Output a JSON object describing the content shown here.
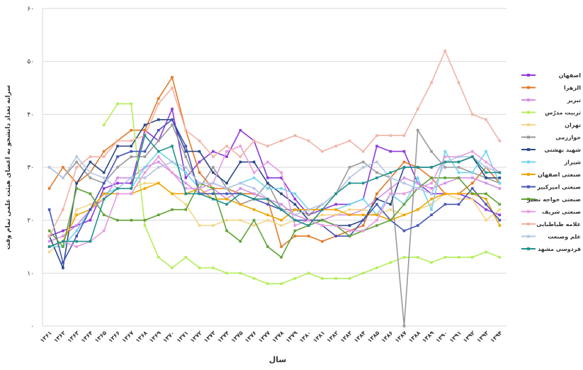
{
  "chart_data": {
    "type": "line",
    "ylabel": "سرانه تعداد دانشجو به اعضای هیئت علمی تمام وقت",
    "xlabel": "سال",
    "categories": [
      "۱۳۶۱",
      "۱۳۶۲",
      "۱۳۶۳",
      "۱۳۶۴",
      "۱۳۶۵",
      "۱۳۶۶",
      "۱۳۶۷",
      "۱۳۶۸",
      "۱۳۶۹",
      "۱۳۷۰",
      "۱۳۷۱",
      "۱۳۷۲",
      "۱۳۷۳",
      "۱۳۷۴",
      "۱۳۷۵",
      "۱۳۷۶",
      "۱۳۷۷",
      "۱۳۷۸",
      "۱۳۷۹",
      "۱۳۸۰",
      "۱۳۸۱",
      "۱۳۸۲",
      "۱۳۸۳",
      "۱۳۸۴",
      "۱۳۸۵",
      "۱۳۸۶",
      "۱۳۸۷",
      "۱۳۸۸",
      "۱۳۸۹",
      "۱۳۹۰",
      "۱۳۹۱",
      "۱۳۹۲",
      "۱۳۹۳",
      "۱۳۹۴"
    ],
    "ylim": [
      0,
      60
    ],
    "yticks": [
      {
        "value": 0,
        "label": "۰"
      },
      {
        "value": 10,
        "label": "۱۰"
      },
      {
        "value": 20,
        "label": "۲۰"
      },
      {
        "value": 30,
        "label": "۳۰"
      },
      {
        "value": 40,
        "label": "۴۰"
      },
      {
        "value": 50,
        "label": "۵۰"
      },
      {
        "value": 60,
        "label": "۶۰"
      }
    ],
    "grid": true,
    "series": [
      {
        "name": "اصفهان",
        "color": "#8e3ad6",
        "values": [
          17,
          18,
          19,
          20,
          26,
          27,
          27,
          37,
          35,
          41,
          28,
          31,
          33,
          32,
          37,
          35,
          28,
          28,
          24,
          21,
          22,
          23,
          23,
          24,
          34,
          33,
          33,
          27,
          25,
          25,
          25,
          24,
          22,
          21
        ]
      },
      {
        "name": "الزهرا",
        "color": "#e07a2c",
        "values": [
          26,
          30,
          27,
          29,
          33,
          35,
          37,
          37,
          43,
          47,
          37,
          29,
          26,
          26,
          25,
          25,
          24,
          15,
          17,
          17,
          16,
          17,
          18,
          19,
          25,
          28,
          31,
          30,
          28,
          25,
          25,
          27,
          30,
          27
        ]
      },
      {
        "name": "تبریز",
        "color": "#d58ee6",
        "values": [
          16,
          17,
          19,
          22,
          24,
          28,
          28,
          30,
          31,
          29,
          27,
          25,
          26,
          24,
          26,
          25,
          24,
          23,
          21,
          20,
          20,
          21,
          21,
          22,
          24,
          26,
          28,
          27,
          26,
          27,
          28,
          28,
          27,
          26
        ]
      },
      {
        "name": "تربیت مدرّس",
        "color": "#b4ee5a",
        "values": [
          null,
          null,
          null,
          null,
          38,
          42,
          42,
          19,
          13,
          11,
          13,
          11,
          11,
          10,
          10,
          9,
          8,
          8,
          9,
          10,
          9,
          9,
          9,
          10,
          11,
          12,
          13,
          13,
          12,
          13,
          13,
          13,
          14,
          13
        ]
      },
      {
        "name": "تهران",
        "color": "#f3d68a",
        "values": [
          14,
          16,
          22,
          23,
          24,
          26,
          26,
          27,
          27,
          25,
          23,
          19,
          19,
          20,
          20,
          19,
          20,
          19,
          20,
          20,
          21,
          21,
          22,
          22,
          21,
          22,
          21,
          22,
          23,
          25,
          24,
          24,
          20,
          22
        ]
      },
      {
        "name": "خوارزمی",
        "color": "#9a9a9a",
        "values": [
          30,
          28,
          31,
          28,
          27,
          30,
          32,
          32,
          35,
          38,
          32,
          26,
          30,
          26,
          23,
          24,
          27,
          22,
          22,
          21,
          23,
          25,
          30,
          31,
          29,
          28,
          0,
          37,
          33,
          30,
          30,
          29,
          28,
          27
        ]
      },
      {
        "name": "شهید بهشتی",
        "color": "#2b4a86",
        "values": [
          17,
          11,
          27,
          31,
          29,
          34,
          34,
          38,
          39,
          39,
          33,
          33,
          29,
          27,
          31,
          31,
          27,
          25,
          23,
          20,
          20,
          19,
          19,
          20,
          24,
          23,
          30,
          30,
          30,
          31,
          31,
          32,
          28,
          28
        ]
      },
      {
        "name": "شیراز",
        "color": "#74d4f0",
        "values": [
          15,
          15,
          18,
          22,
          25,
          26,
          26,
          30,
          33,
          31,
          29,
          26,
          27,
          26,
          27,
          28,
          26,
          26,
          25,
          22,
          22,
          22,
          23,
          24,
          21,
          25,
          23,
          28,
          22,
          33,
          29,
          29,
          33,
          27
        ]
      },
      {
        "name": "صنعتی اصفهان",
        "color": "#f0a500",
        "values": [
          15,
          16,
          21,
          22,
          25,
          25,
          25,
          26,
          27,
          25,
          25,
          26,
          24,
          24,
          23,
          22,
          21,
          20,
          22,
          22,
          22,
          22,
          21,
          21,
          21,
          20,
          21,
          22,
          24,
          25,
          25,
          25,
          24,
          19
        ]
      },
      {
        "name": "صنعتی امیرکبیر",
        "color": "#4656b8",
        "values": [
          22,
          12,
          17,
          22,
          27,
          32,
          33,
          33,
          37,
          39,
          34,
          25,
          25,
          25,
          25,
          24,
          23,
          22,
          20,
          20,
          19,
          17,
          17,
          20,
          23,
          20,
          18,
          19,
          21,
          23,
          23,
          26,
          23,
          20
        ]
      },
      {
        "name": "صنعتی خواجه نصیر",
        "color": "#62a236",
        "values": [
          18,
          15,
          26,
          25,
          21,
          20,
          20,
          20,
          21,
          22,
          22,
          27,
          26,
          18,
          16,
          20,
          15,
          13,
          18,
          19,
          20,
          19,
          17,
          18,
          19,
          20,
          23,
          26,
          28,
          28,
          28,
          25,
          25,
          23
        ]
      },
      {
        "name": "صنعتی شریف",
        "color": "#e79be0",
        "values": [
          15,
          16,
          15,
          16,
          18,
          25,
          25,
          29,
          32,
          29,
          26,
          26,
          27,
          33,
          34,
          29,
          31,
          29,
          19,
          20,
          19,
          19,
          18,
          18,
          20,
          25,
          25,
          26,
          27,
          32,
          32,
          33,
          31,
          29
        ]
      },
      {
        "name": "علامه طباطبایی",
        "color": "#f2b3a6",
        "values": [
          17,
          22,
          30,
          32,
          32,
          35,
          35,
          36,
          42,
          45,
          37,
          35,
          32,
          34,
          32,
          35,
          34,
          35,
          36,
          35,
          33,
          34,
          35,
          33,
          36,
          36,
          36,
          41,
          46,
          52,
          46,
          40,
          39,
          35
        ]
      },
      {
        "name": "علم وصنعت",
        "color": "#b8c4e2",
        "values": [
          30,
          28,
          32,
          29,
          28,
          26,
          28,
          28,
          30,
          31,
          30,
          27,
          27,
          26,
          27,
          26,
          24,
          22,
          21,
          22,
          23,
          25,
          28,
          30,
          31,
          28,
          27,
          26,
          25,
          31,
          32,
          32,
          30,
          29
        ]
      },
      {
        "name": "فردوسی مشهد",
        "color": "#21918c",
        "values": [
          15,
          16,
          16,
          16,
          24,
          26,
          26,
          36,
          33,
          34,
          25,
          25,
          24,
          23,
          25,
          24,
          24,
          22,
          20,
          19,
          22,
          25,
          27,
          27,
          28,
          29,
          30,
          30,
          30,
          31,
          31,
          32,
          29,
          29
        ]
      }
    ]
  }
}
